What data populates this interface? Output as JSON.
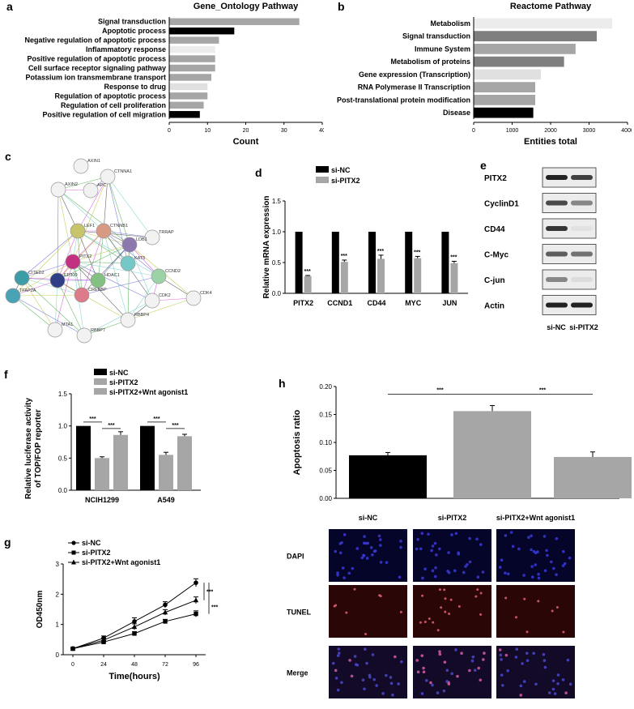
{
  "panels": {
    "a": "a",
    "b": "b",
    "c": "c",
    "d": "d",
    "e": "e",
    "f": "f",
    "g": "g",
    "h": "h"
  },
  "chart_data": [
    {
      "id": "a",
      "type": "bar",
      "orientation": "horizontal",
      "title": "Gene_Ontology Pathway",
      "xlabel": "Count",
      "xlim": [
        0,
        40
      ],
      "xticks": [
        "0",
        "10",
        "20",
        "30",
        "40"
      ],
      "categories": [
        "Signal transduction",
        "Apoptotic process",
        "Negative regulation of apoptotic process",
        "Inflammatory response",
        "Positive regulation of apoptotic process",
        "Cell surface receptor signaling pathway",
        "Potassium ion transmembrane transport",
        "Response to drug",
        "Regulation of apoptotic process",
        "Regulation of cell proliferation",
        "Positive regulation of cell migration"
      ],
      "values": [
        34,
        17,
        13,
        12,
        12,
        12,
        11,
        10,
        10,
        9,
        8
      ],
      "colors": [
        "#a6a6a6",
        "#000000",
        "#a6a6a6",
        "#ececec",
        "#a6a6a6",
        "#a6a6a6",
        "#a6a6a6",
        "#e0e0e0",
        "#a6a6a6",
        "#a6a6a6",
        "#000000"
      ]
    },
    {
      "id": "b",
      "type": "bar",
      "orientation": "horizontal",
      "title": "Reactome Pathway",
      "xlabel": "Entities total",
      "xlim": [
        0,
        4000
      ],
      "xticks": [
        "0",
        "1000",
        "2000",
        "3000",
        "4000"
      ],
      "categories": [
        "Metabolism",
        "Signal transduction",
        "Immune System",
        "Metabolism of proteins",
        "Gene expression (Transcription)",
        "RNA Polymerase II Transcription",
        "Post-translational protein modification",
        "Disease"
      ],
      "values": [
        3600,
        3200,
        2650,
        2350,
        1750,
        1600,
        1600,
        1550
      ],
      "colors": [
        "#ececec",
        "#7f7f7f",
        "#a6a6a6",
        "#7f7f7f",
        "#e0e0e0",
        "#a6a6a6",
        "#a6a6a6",
        "#000000"
      ]
    },
    {
      "id": "d",
      "type": "bar",
      "ylabel": "Relative mRNA expression",
      "ylim": [
        0,
        1.5
      ],
      "yticks": [
        "0.0",
        "0.5",
        "1.0",
        "1.5"
      ],
      "categories": [
        "PITX2",
        "CCND1",
        "CD44",
        "MYC",
        "JUN"
      ],
      "series": [
        {
          "name": "si-NC",
          "values": [
            1.0,
            1.0,
            1.0,
            1.0,
            1.0
          ],
          "color": "#000000"
        },
        {
          "name": "si-PITX2",
          "values": [
            0.28,
            0.51,
            0.56,
            0.57,
            0.49
          ],
          "errors": [
            0.01,
            0.03,
            0.06,
            0.03,
            0.03
          ],
          "color": "#a6a6a6"
        }
      ],
      "annotations": [
        "***",
        "***",
        "***",
        "***",
        "***"
      ]
    },
    {
      "id": "f",
      "type": "bar",
      "ylabel": "Relative luciferase activity\nof TOP/FOP reporter",
      "ylabel_lines": [
        "Relative luciferase activity",
        "of TOP/FOP reporter"
      ],
      "ylim": [
        0,
        1.5
      ],
      "yticks": [
        "0.0",
        "0.5",
        "1.0",
        "1.5"
      ],
      "categories": [
        "NCIH1299",
        "A549"
      ],
      "series": [
        {
          "name": "si-NC",
          "values": [
            1.0,
            1.0
          ],
          "color": "#000000"
        },
        {
          "name": "si-PITX2",
          "values": [
            0.5,
            0.55
          ],
          "errors": [
            0.02,
            0.04
          ],
          "color": "#a6a6a6"
        },
        {
          "name": "si-PITX2+Wnt agonist1",
          "values": [
            0.86,
            0.84
          ],
          "errors": [
            0.05,
            0.03
          ],
          "color": "#a6a6a6"
        }
      ],
      "annotations": [
        "***",
        "***",
        "***",
        "***"
      ]
    },
    {
      "id": "g",
      "type": "line",
      "xlabel": "Time(hours)",
      "ylabel": "OD450nm",
      "xlim": [
        0,
        96
      ],
      "ylim": [
        0,
        3
      ],
      "x": [
        0,
        24,
        48,
        72,
        96
      ],
      "xticks": [
        "0",
        "24",
        "48",
        "72",
        "96"
      ],
      "yticks": [
        "0",
        "1",
        "2",
        "3"
      ],
      "series": [
        {
          "name": "si-NC",
          "marker": "circle",
          "values": [
            0.2,
            0.55,
            1.1,
            1.65,
            2.38
          ],
          "errors": [
            0.03,
            0.07,
            0.12,
            0.1,
            0.13
          ]
        },
        {
          "name": "si-PITX2",
          "marker": "square",
          "values": [
            0.2,
            0.42,
            0.7,
            1.1,
            1.35
          ],
          "errors": [
            0.02,
            0.05,
            0.06,
            0.07,
            0.1
          ]
        },
        {
          "name": "si-PITX2+Wnt agonist1",
          "marker": "triangle",
          "values": [
            0.2,
            0.48,
            0.92,
            1.4,
            1.8
          ],
          "errors": [
            0.02,
            0.06,
            0.1,
            0.09,
            0.11
          ]
        }
      ],
      "annotations": [
        "***",
        "***"
      ]
    },
    {
      "id": "h",
      "type": "bar",
      "ylabel": "Apoptosis ratio",
      "ylim": [
        0,
        0.2
      ],
      "yticks": [
        "0.00",
        "0.05",
        "0.10",
        "0.15",
        "0.20"
      ],
      "categories": [
        "si-NC",
        "si-PITX2",
        "si-PITX2+Wnt agonist1"
      ],
      "values": [
        0.077,
        0.156,
        0.074
      ],
      "errors": [
        0.005,
        0.01,
        0.009
      ],
      "colors": [
        "#000000",
        "#a6a6a6",
        "#a6a6a6"
      ],
      "annotations": [
        "***",
        "***"
      ]
    }
  ],
  "network": {
    "nodes": [
      "AXIN1",
      "CTNNA1",
      "AXIN2",
      "APC",
      "LEF1",
      "CTNNB1",
      "TRRAP",
      "PITX2",
      "LDB1",
      "KAT5",
      "CITED2",
      "EP300",
      "HDAC1",
      "CCND2",
      "TFAP2A",
      "CREBBP",
      "CDK2",
      "CDK4",
      "MTA1",
      "RBBP4",
      "RBBP7"
    ]
  },
  "western_blot": {
    "proteins": [
      "PITX2",
      "CyclinD1",
      "CD44",
      "C-Myc",
      "C-jun",
      "Actin"
    ],
    "lanes": [
      "si-NC",
      "si-PITX2"
    ]
  },
  "tunel": {
    "columns": [
      "si-NC",
      "si-PITX2",
      "si-PITX2+Wnt agonist1"
    ],
    "rows": [
      "DAPI",
      "TUNEL",
      "Merge"
    ]
  }
}
